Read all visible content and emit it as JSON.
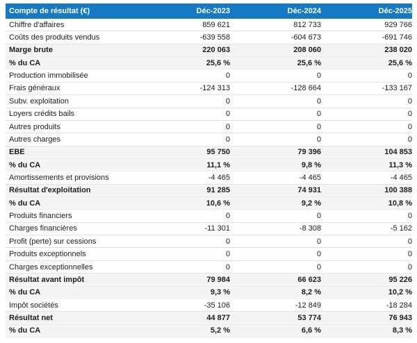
{
  "colors": {
    "header_bg": "#1778C4",
    "header_text": "#FFFFFF",
    "shaded_row_bg": "#F4F4F4",
    "border": "#E3E3E3"
  },
  "table": {
    "header": {
      "label": "Compte de résultat (€)",
      "columns": [
        "Déc-2023",
        "Déc-2024",
        "Déc-2025"
      ]
    },
    "rows": [
      {
        "label": "Chiffre d'affaires",
        "values": [
          "859 621",
          "812 733",
          "929 766"
        ],
        "bold": false
      },
      {
        "label": "Coûts des produits vendus",
        "values": [
          "-639 558",
          "-604 673",
          "-691 746"
        ],
        "bold": false
      },
      {
        "label": "Marge brute",
        "values": [
          "220 063",
          "208 060",
          "238 020"
        ],
        "bold": true
      },
      {
        "label": "% du CA",
        "values": [
          "25,6 %",
          "25,6 %",
          "25,6 %"
        ],
        "bold": true
      },
      {
        "label": "Production immobilisée",
        "values": [
          "0",
          "0",
          "0"
        ],
        "bold": false
      },
      {
        "label": "Frais généraux",
        "values": [
          "-124 313",
          "-128 664",
          "-133 167"
        ],
        "bold": false
      },
      {
        "label": "Subv. exploitation",
        "values": [
          "0",
          "0",
          "0"
        ],
        "bold": false
      },
      {
        "label": "Loyers crédits bails",
        "values": [
          "0",
          "0",
          "0"
        ],
        "bold": false
      },
      {
        "label": "Autres produits",
        "values": [
          "0",
          "0",
          "0"
        ],
        "bold": false
      },
      {
        "label": "Autres charges",
        "values": [
          "0",
          "0",
          "0"
        ],
        "bold": false
      },
      {
        "label": "EBE",
        "values": [
          "95 750",
          "79 396",
          "104 853"
        ],
        "bold": true
      },
      {
        "label": "% du CA",
        "values": [
          "11,1 %",
          "9,8 %",
          "11,3 %"
        ],
        "bold": true
      },
      {
        "label": "Amortissements et provisions",
        "values": [
          "-4 465",
          "-4 465",
          "-4 465"
        ],
        "bold": false
      },
      {
        "label": "Résultat d'exploitation",
        "values": [
          "91 285",
          "74 931",
          "100 388"
        ],
        "bold": true
      },
      {
        "label": "% du CA",
        "values": [
          "10,6 %",
          "9,2 %",
          "10,8 %"
        ],
        "bold": true
      },
      {
        "label": "Produits financiers",
        "values": [
          "0",
          "0",
          "0"
        ],
        "bold": false
      },
      {
        "label": "Charges financières",
        "values": [
          "-11 301",
          "-8 308",
          "-5 162"
        ],
        "bold": false
      },
      {
        "label": "Profit (perte) sur cessions",
        "values": [
          "0",
          "0",
          "0"
        ],
        "bold": false
      },
      {
        "label": "Produits exceptionnels",
        "values": [
          "0",
          "0",
          "0"
        ],
        "bold": false
      },
      {
        "label": "Charges exceptionnelles",
        "values": [
          "0",
          "0",
          "0"
        ],
        "bold": false
      },
      {
        "label": "Résultat avant impôt",
        "values": [
          "79 984",
          "66 623",
          "95 226"
        ],
        "bold": true
      },
      {
        "label": "% du CA",
        "values": [
          "9,3 %",
          "8,2 %",
          "10,2 %"
        ],
        "bold": true
      },
      {
        "label": "Impôt sociétés",
        "values": [
          "-35 106",
          "-12 849",
          "-18 284"
        ],
        "bold": false
      },
      {
        "label": "Résultat net",
        "values": [
          "44 877",
          "53 774",
          "76 943"
        ],
        "bold": true
      },
      {
        "label": "% du CA",
        "values": [
          "5,2 %",
          "6,6 %",
          "8,3 %"
        ],
        "bold": true
      }
    ]
  },
  "chart_data": {
    "type": "table",
    "title": "Compte de résultat (€)",
    "columns": [
      "Déc-2023",
      "Déc-2024",
      "Déc-2025"
    ],
    "rows": [
      {
        "label": "Chiffre d'affaires",
        "values": [
          859621,
          812733,
          929766
        ]
      },
      {
        "label": "Coûts des produits vendus",
        "values": [
          -639558,
          -604673,
          -691746
        ]
      },
      {
        "label": "Marge brute",
        "values": [
          220063,
          208060,
          238020
        ]
      },
      {
        "label": "% du CA (marge brute)",
        "values": [
          25.6,
          25.6,
          25.6
        ],
        "unit": "%"
      },
      {
        "label": "Production immobilisée",
        "values": [
          0,
          0,
          0
        ]
      },
      {
        "label": "Frais généraux",
        "values": [
          -124313,
          -128664,
          -133167
        ]
      },
      {
        "label": "Subv. exploitation",
        "values": [
          0,
          0,
          0
        ]
      },
      {
        "label": "Loyers crédits bails",
        "values": [
          0,
          0,
          0
        ]
      },
      {
        "label": "Autres produits",
        "values": [
          0,
          0,
          0
        ]
      },
      {
        "label": "Autres charges",
        "values": [
          0,
          0,
          0
        ]
      },
      {
        "label": "EBE",
        "values": [
          95750,
          79396,
          104853
        ]
      },
      {
        "label": "% du CA (EBE)",
        "values": [
          11.1,
          9.8,
          11.3
        ],
        "unit": "%"
      },
      {
        "label": "Amortissements et provisions",
        "values": [
          -4465,
          -4465,
          -4465
        ]
      },
      {
        "label": "Résultat d'exploitation",
        "values": [
          91285,
          74931,
          100388
        ]
      },
      {
        "label": "% du CA (résultat d'exploitation)",
        "values": [
          10.6,
          9.2,
          10.8
        ],
        "unit": "%"
      },
      {
        "label": "Produits financiers",
        "values": [
          0,
          0,
          0
        ]
      },
      {
        "label": "Charges financières",
        "values": [
          -11301,
          -8308,
          -5162
        ]
      },
      {
        "label": "Profit (perte) sur cessions",
        "values": [
          0,
          0,
          0
        ]
      },
      {
        "label": "Produits exceptionnels",
        "values": [
          0,
          0,
          0
        ]
      },
      {
        "label": "Charges exceptionnelles",
        "values": [
          0,
          0,
          0
        ]
      },
      {
        "label": "Résultat avant impôt",
        "values": [
          79984,
          66623,
          95226
        ]
      },
      {
        "label": "% du CA (résultat avant impôt)",
        "values": [
          9.3,
          8.2,
          10.2
        ],
        "unit": "%"
      },
      {
        "label": "Impôt sociétés",
        "values": [
          -35106,
          -12849,
          -18284
        ]
      },
      {
        "label": "Résultat net",
        "values": [
          44877,
          53774,
          76943
        ]
      },
      {
        "label": "% du CA (résultat net)",
        "values": [
          5.2,
          6.6,
          8.3
        ],
        "unit": "%"
      }
    ]
  }
}
